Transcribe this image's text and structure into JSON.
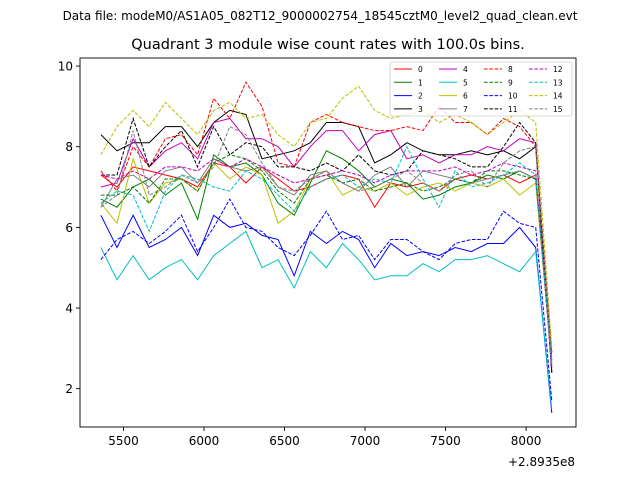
{
  "header": {
    "datafile": "Data file: modeM0/AS1A05_082T12_9000002754_18545cztM0_level2_quad_clean.evt"
  },
  "chart_data": {
    "type": "line",
    "title": "Quadrant 3 module wise count rates with 100.0s bins.",
    "xlabel": "",
    "ylabel": "",
    "x_offset_label": "+2.8935e8",
    "xlim": [
      5230,
      8310
    ],
    "ylim": [
      1.05,
      10.2
    ],
    "xticks": [
      5500,
      6000,
      6500,
      7000,
      7500,
      8000
    ],
    "yticks": [
      2,
      4,
      6,
      8,
      10
    ],
    "grid": false,
    "legend_position": "top-right",
    "x": [
      5360,
      5460,
      5560,
      5660,
      5760,
      5860,
      5960,
      6060,
      6160,
      6260,
      6360,
      6460,
      6560,
      6660,
      6760,
      6860,
      6960,
      7060,
      7160,
      7260,
      7360,
      7460,
      7560,
      7660,
      7760,
      7860,
      7960,
      8060,
      8160
    ],
    "series": [
      {
        "name": "0",
        "color": "#ff0000",
        "dash": false,
        "values": [
          7.3,
          7.0,
          7.5,
          7.4,
          7.3,
          7.2,
          7.0,
          7.6,
          7.5,
          7.1,
          7.5,
          7.2,
          6.9,
          7.0,
          7.2,
          7.3,
          7.2,
          6.5,
          7.1,
          7.0,
          7.1,
          6.9,
          7.2,
          7.3,
          7.2,
          7.3,
          7.1,
          7.3,
          2.9
        ]
      },
      {
        "name": "1",
        "color": "#008000",
        "dash": false,
        "values": [
          6.7,
          6.5,
          7.0,
          7.2,
          6.8,
          7.1,
          6.2,
          7.8,
          7.5,
          7.6,
          7.3,
          6.6,
          6.3,
          7.1,
          7.9,
          7.7,
          7.4,
          7.0,
          7.2,
          7.1,
          6.7,
          6.8,
          7.0,
          7.1,
          7.3,
          7.2,
          7.4,
          7.2,
          2.7
        ]
      },
      {
        "name": "2",
        "color": "#0000ff",
        "dash": false,
        "values": [
          6.3,
          5.5,
          6.3,
          5.5,
          5.7,
          6.0,
          5.3,
          6.3,
          6.0,
          6.1,
          5.8,
          5.7,
          4.8,
          5.9,
          5.6,
          5.9,
          5.7,
          5.0,
          5.6,
          5.3,
          5.4,
          5.3,
          5.5,
          5.4,
          5.6,
          5.6,
          6.0,
          5.5,
          1.4
        ]
      },
      {
        "name": "3",
        "color": "#000000",
        "dash": false,
        "values": [
          8.3,
          7.9,
          8.1,
          8.1,
          8.5,
          8.5,
          8.0,
          8.6,
          8.9,
          8.8,
          7.7,
          7.8,
          7.9,
          8.1,
          8.6,
          8.6,
          8.5,
          7.6,
          7.8,
          8.1,
          7.9,
          7.8,
          7.8,
          7.9,
          7.8,
          7.9,
          7.7,
          8.0,
          2.4
        ]
      },
      {
        "name": "4",
        "color": "#c000c0",
        "dash": false,
        "values": [
          7.0,
          7.1,
          8.2,
          7.5,
          7.9,
          8.1,
          7.7,
          8.6,
          8.7,
          8.2,
          8.2,
          8.0,
          7.5,
          8.0,
          8.4,
          8.4,
          7.9,
          8.3,
          8.4,
          7.7,
          7.8,
          7.6,
          7.8,
          7.8,
          8.0,
          7.9,
          8.2,
          8.1,
          2.5
        ]
      },
      {
        "name": "5",
        "color": "#00bfbf",
        "dash": false,
        "values": [
          5.5,
          4.7,
          5.3,
          4.7,
          5.0,
          5.2,
          4.7,
          5.3,
          5.6,
          5.9,
          5.0,
          5.2,
          4.5,
          5.4,
          5.0,
          5.6,
          5.2,
          4.7,
          4.8,
          4.8,
          5.1,
          4.9,
          5.2,
          5.2,
          5.3,
          5.1,
          4.9,
          5.4,
          1.5
        ]
      },
      {
        "name": "6",
        "color": "#bfbf00",
        "dash": false,
        "values": [
          6.6,
          6.1,
          7.7,
          6.6,
          7.1,
          7.2,
          6.9,
          7.6,
          7.2,
          7.5,
          7.3,
          6.1,
          6.4,
          7.2,
          7.4,
          6.8,
          7.0,
          6.9,
          7.1,
          6.8,
          7.0,
          7.1,
          6.9,
          7.1,
          7.0,
          7.2,
          6.8,
          7.1,
          2.6
        ]
      },
      {
        "name": "7",
        "color": "#808080",
        "dash": false,
        "values": [
          6.5,
          7.2,
          7.3,
          7.0,
          7.4,
          7.5,
          7.1,
          7.7,
          7.5,
          7.4,
          7.5,
          7.0,
          6.8,
          7.3,
          7.4,
          7.1,
          6.9,
          7.3,
          7.5,
          7.0,
          7.4,
          7.3,
          7.2,
          7.1,
          7.2,
          7.3,
          7.4,
          7.2,
          2.6
        ]
      },
      {
        "name": "8",
        "color": "#ff0000",
        "dash": true,
        "values": [
          7.4,
          6.9,
          8.0,
          7.5,
          8.2,
          8.3,
          7.8,
          9.2,
          8.7,
          9.6,
          9.0,
          7.6,
          7.5,
          8.6,
          8.8,
          8.6,
          8.5,
          8.4,
          8.4,
          8.5,
          8.4,
          9.0,
          8.6,
          8.6,
          8.3,
          8.7,
          8.5,
          8.0,
          2.9
        ]
      },
      {
        "name": "9",
        "color": "#008000",
        "dash": true,
        "values": [
          6.8,
          6.8,
          7.0,
          6.6,
          7.2,
          7.2,
          6.9,
          7.6,
          7.8,
          7.7,
          7.4,
          6.9,
          6.6,
          7.2,
          7.3,
          7.1,
          7.2,
          6.9,
          7.0,
          7.1,
          6.9,
          7.0,
          7.2,
          7.1,
          7.4,
          7.4,
          7.3,
          7.2,
          2.8
        ]
      },
      {
        "name": "10",
        "color": "#0000ff",
        "dash": true,
        "values": [
          5.2,
          5.7,
          5.9,
          5.6,
          5.9,
          6.3,
          5.4,
          6.0,
          6.7,
          6.0,
          5.9,
          5.5,
          5.3,
          5.8,
          6.4,
          5.7,
          5.8,
          5.2,
          5.7,
          5.7,
          5.4,
          5.2,
          5.6,
          5.7,
          5.7,
          6.4,
          6.1,
          6.0,
          1.7
        ]
      },
      {
        "name": "11",
        "color": "#000000",
        "dash": true,
        "values": [
          7.3,
          7.3,
          8.7,
          7.5,
          8.0,
          8.4,
          7.5,
          8.5,
          7.8,
          8.1,
          8.0,
          7.5,
          7.5,
          7.4,
          7.6,
          7.4,
          7.8,
          7.4,
          7.3,
          7.4,
          7.9,
          7.8,
          7.7,
          7.5,
          7.5,
          8.0,
          8.6,
          8.1,
          2.4
        ]
      },
      {
        "name": "12",
        "color": "#c000c0",
        "dash": true,
        "values": [
          7.3,
          7.2,
          7.4,
          7.2,
          7.5,
          7.5,
          7.4,
          7.7,
          7.5,
          7.7,
          7.5,
          7.3,
          7.1,
          7.2,
          7.3,
          7.4,
          7.3,
          7.1,
          7.3,
          7.4,
          7.4,
          7.4,
          7.5,
          7.3,
          7.4,
          7.6,
          7.5,
          7.4,
          2.5
        ]
      },
      {
        "name": "13",
        "color": "#00bfbf",
        "dash": true,
        "values": [
          6.6,
          6.9,
          6.8,
          5.9,
          6.9,
          7.3,
          7.2,
          7.0,
          6.9,
          7.4,
          7.2,
          6.8,
          6.4,
          7.0,
          7.2,
          7.3,
          7.0,
          7.2,
          7.1,
          8.0,
          7.2,
          6.5,
          7.4,
          7.0,
          7.1,
          7.3,
          7.6,
          7.3,
          2.6
        ]
      },
      {
        "name": "14",
        "color": "#bfbf00",
        "dash": true,
        "values": [
          7.8,
          8.5,
          8.9,
          8.5,
          9.1,
          8.7,
          8.3,
          8.9,
          9.1,
          8.7,
          8.8,
          8.3,
          8.0,
          8.6,
          8.7,
          9.2,
          9.5,
          8.9,
          8.7,
          8.8,
          8.9,
          8.6,
          8.8,
          8.6,
          8.3,
          8.6,
          8.9,
          8.6,
          3.0
        ]
      },
      {
        "name": "15",
        "color": "#808080",
        "dash": true,
        "values": [
          6.5,
          6.8,
          8.4,
          6.8,
          7.0,
          7.3,
          7.1,
          7.5,
          8.5,
          8.3,
          7.6,
          7.0,
          6.9,
          7.2,
          7.4,
          7.1,
          6.9,
          7.0,
          7.2,
          7.4,
          7.1,
          6.9,
          7.3,
          7.4,
          7.0,
          7.6,
          7.9,
          8.0,
          2.7
        ]
      }
    ]
  }
}
